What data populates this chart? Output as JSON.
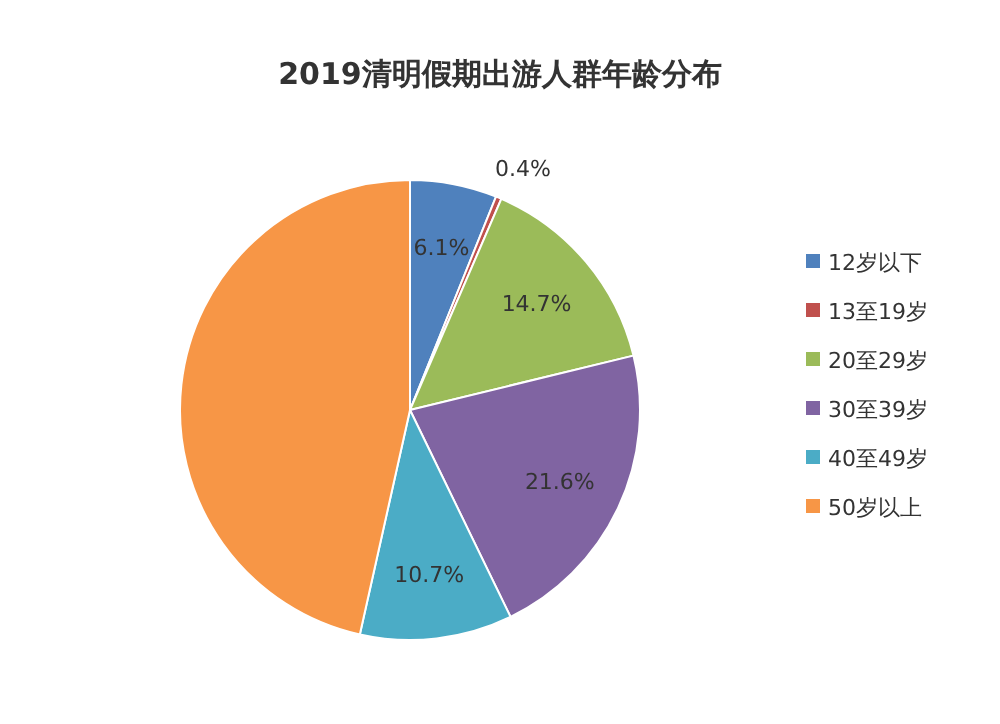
{
  "chart_data": {
    "type": "pie",
    "title": "2019清明假期出游人群年龄分布",
    "categories": [
      "12岁以下",
      "13至19岁",
      "20至29岁",
      "30至39岁",
      "40至49岁",
      "50岁以上"
    ],
    "values": [
      6.1,
      0.4,
      14.7,
      21.6,
      10.7,
      46.5
    ],
    "value_labels": [
      "6.1%",
      "0.4%",
      "14.7%",
      "21.6%",
      "10.7%",
      null
    ],
    "colors": [
      "#4f81bd",
      "#c0504d",
      "#9bbb59",
      "#8064a2",
      "#4bacc6",
      "#f79646"
    ],
    "legend": "right"
  }
}
